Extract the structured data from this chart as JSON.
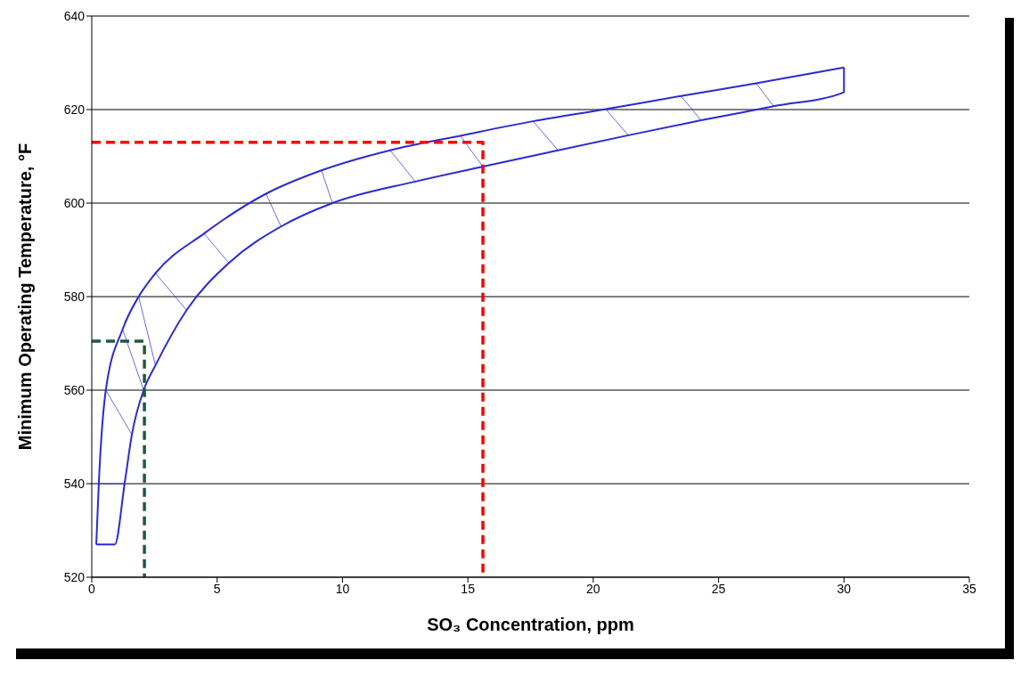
{
  "chart_data": {
    "type": "line",
    "xlabel": "SO₃ Concentration, ppm",
    "ylabel": "Minimum Operating Temperature, °F",
    "xlim": [
      0,
      35
    ],
    "xticks": [
      0,
      5,
      10,
      15,
      20,
      25,
      30,
      35
    ],
    "ylim": [
      520,
      640
    ],
    "yticks": [
      520,
      540,
      560,
      580,
      600,
      620,
      640
    ],
    "grid": "y",
    "marker": "none",
    "series": [
      {
        "color": "#2b2bd0",
        "line_style": "solid",
        "x": [
          0.18,
          0.28,
          0.56,
          1.23,
          1.87,
          2.54,
          4.48,
          6.95,
          9.16,
          11.9,
          14.7,
          17.6,
          20.5,
          23.5,
          26.5,
          30
        ],
        "values": [
          527,
          540,
          560,
          573,
          580,
          585,
          593.5,
          602,
          607,
          611.3,
          614.4,
          617.5,
          620.1,
          622.9,
          625.6,
          629
        ]
      },
      {
        "color": "#2b2bd0",
        "line_style": "solid",
        "x": [
          0.18,
          0.92,
          1.31,
          1.6,
          2.07,
          2.54,
          3.78,
          5.47,
          7.55,
          9.6,
          12.9,
          15.6,
          18.6,
          21.4,
          24.3,
          27.2,
          30,
          30
        ],
        "values": [
          527,
          527,
          540,
          550.5,
          560,
          565.3,
          577.1,
          587.2,
          595,
          600,
          604.6,
          607.8,
          611.3,
          614.5,
          617.7,
          620.7,
          623.7,
          629
        ]
      },
      {
        "color": "#ff0000",
        "line_style": "dashed",
        "x": [
          0,
          15.6,
          15.6
        ],
        "values": [
          613,
          613,
          520
        ]
      },
      {
        "color": "#1f5a3a",
        "line_style": "dashed",
        "x": [
          0,
          2.1,
          2.1
        ],
        "values": [
          570.5,
          570.5,
          520
        ]
      }
    ]
  }
}
